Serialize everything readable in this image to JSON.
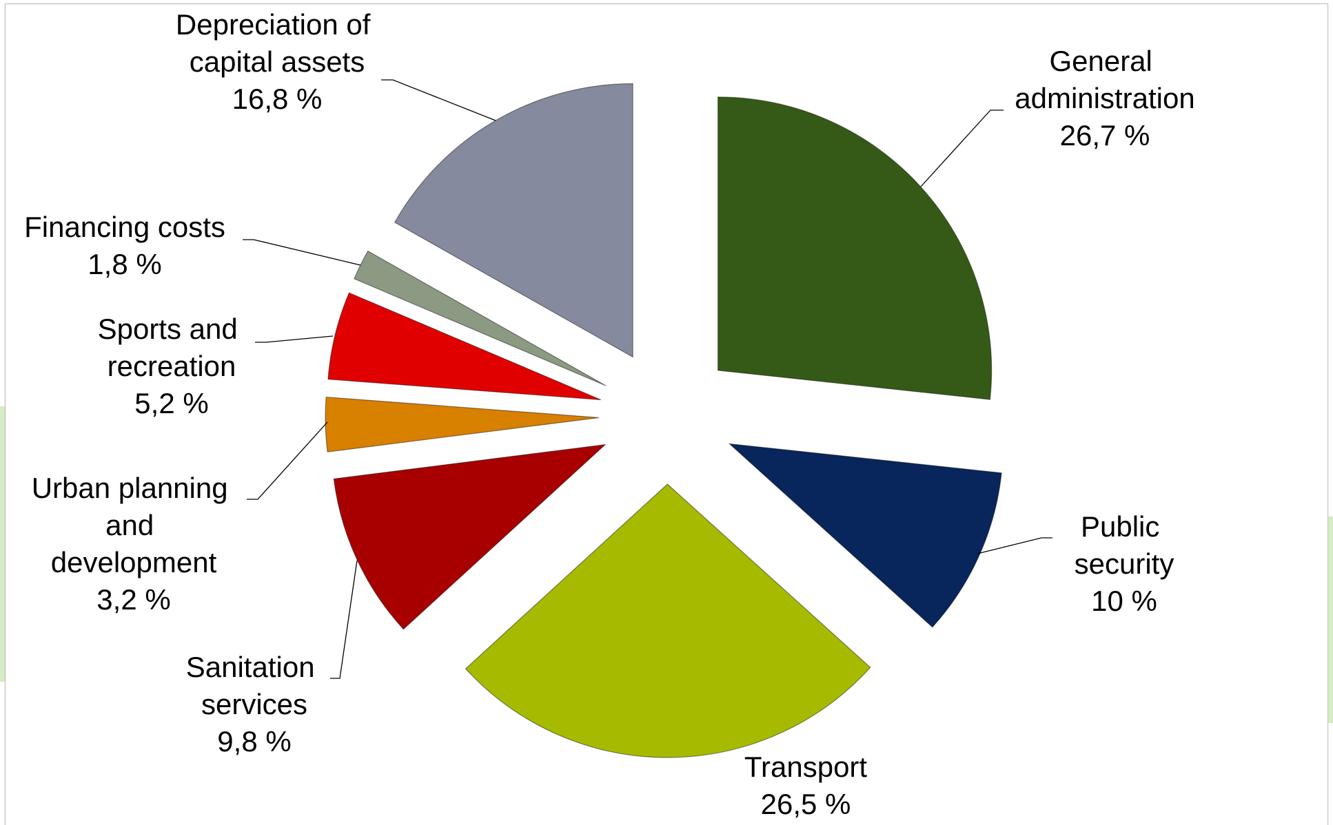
{
  "chart_data": {
    "type": "pie",
    "categories": [
      "General administration",
      "Public security",
      "Transport",
      "Sanitation services",
      "Urban planning and development",
      "Sports and recreation",
      "Financing costs",
      "Depreciation of capital assets"
    ],
    "values": [
      26.7,
      10,
      26.5,
      9.8,
      3.2,
      5.2,
      1.8,
      16.8
    ],
    "value_labels": [
      "26,7 %",
      "10 %",
      "26,5 %",
      "9,8 %",
      "3,2 %",
      "5,2 %",
      "1,8 %",
      "16,8 %"
    ],
    "colors": [
      "#355a17",
      "#08265c",
      "#a6ba00",
      "#a80000",
      "#d88000",
      "#e00000",
      "#8c9a84",
      "#868a9e"
    ]
  }
}
